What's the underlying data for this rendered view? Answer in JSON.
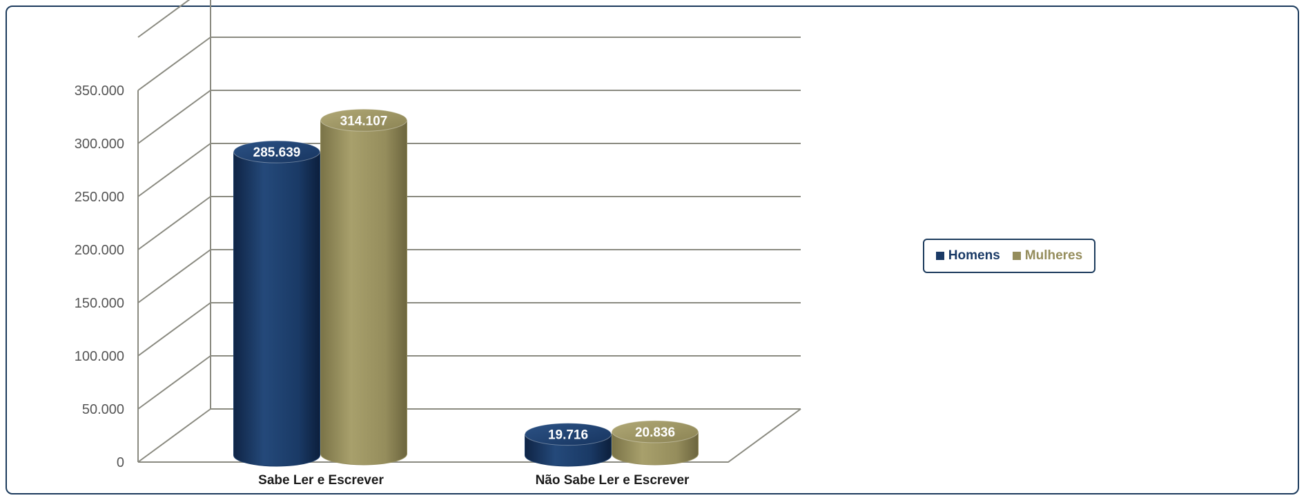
{
  "chart_data": {
    "type": "bar",
    "style": "3d-cylinder",
    "categories": [
      "Sabe Ler e Escrever",
      "Não Sabe Ler e Escrever"
    ],
    "series": [
      {
        "name": "Homens",
        "values": [
          285639,
          19716
        ],
        "labels": [
          "285.639",
          "19.716"
        ],
        "color": "#1a3a66"
      },
      {
        "name": "Mulheres",
        "values": [
          314107,
          20836
        ],
        "labels": [
          "314.107",
          "20.836"
        ],
        "color": "#958d5c"
      }
    ],
    "ylim": [
      0,
      400000
    ],
    "yticks": [
      {
        "value": 0,
        "label": "0"
      },
      {
        "value": 50000,
        "label": "50.000"
      },
      {
        "value": 100000,
        "label": "100.000"
      },
      {
        "value": 150000,
        "label": "150.000"
      },
      {
        "value": 200000,
        "label": "200.000"
      },
      {
        "value": 250000,
        "label": "250.000"
      },
      {
        "value": 300000,
        "label": "300.000"
      },
      {
        "value": 350000,
        "label": "350.000"
      }
    ],
    "grid": true,
    "legend_position": "right"
  }
}
